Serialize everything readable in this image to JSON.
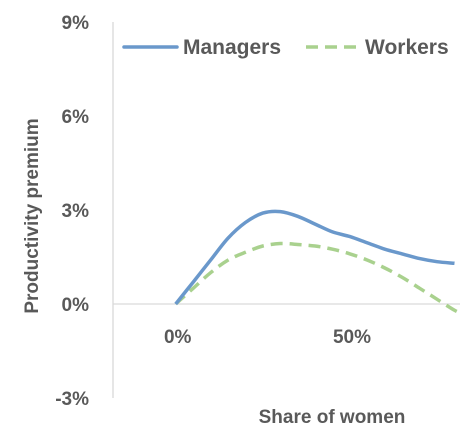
{
  "chart_data": {
    "type": "line",
    "xlabel": "Share of women",
    "ylabel": "Productivity premium",
    "x_tick_labels": [
      "0%",
      "50%"
    ],
    "x_ticks": [
      0,
      50
    ],
    "y_tick_labels": [
      "9%",
      "6%",
      "3%",
      "0%",
      "-3%"
    ],
    "y_ticks": [
      9,
      6,
      3,
      0,
      -3
    ],
    "xlim": [
      -18,
      81
    ],
    "ylim": [
      -3,
      9
    ],
    "grid": false,
    "legend_position": "top",
    "series": [
      {
        "name": "Managers",
        "color": "#6A98CB",
        "dash": "solid",
        "x": [
          0,
          5,
          10,
          15,
          20,
          25,
          30,
          35,
          40,
          45,
          50,
          55,
          60,
          65,
          70,
          75,
          80
        ],
        "y": [
          0,
          0.7,
          1.4,
          2.1,
          2.6,
          2.9,
          2.95,
          2.8,
          2.55,
          2.3,
          2.15,
          1.95,
          1.75,
          1.6,
          1.45,
          1.35,
          1.3
        ]
      },
      {
        "name": "Workers",
        "color": "#A9D18E",
        "dash": "dashed",
        "x": [
          0,
          5,
          10,
          15,
          20,
          25,
          30,
          35,
          40,
          45,
          50,
          55,
          60,
          65,
          70,
          75,
          80,
          82
        ],
        "y": [
          0,
          0.5,
          1.0,
          1.4,
          1.65,
          1.85,
          1.93,
          1.9,
          1.85,
          1.75,
          1.6,
          1.4,
          1.15,
          0.85,
          0.5,
          0.15,
          -0.2,
          -0.3
        ]
      }
    ]
  }
}
